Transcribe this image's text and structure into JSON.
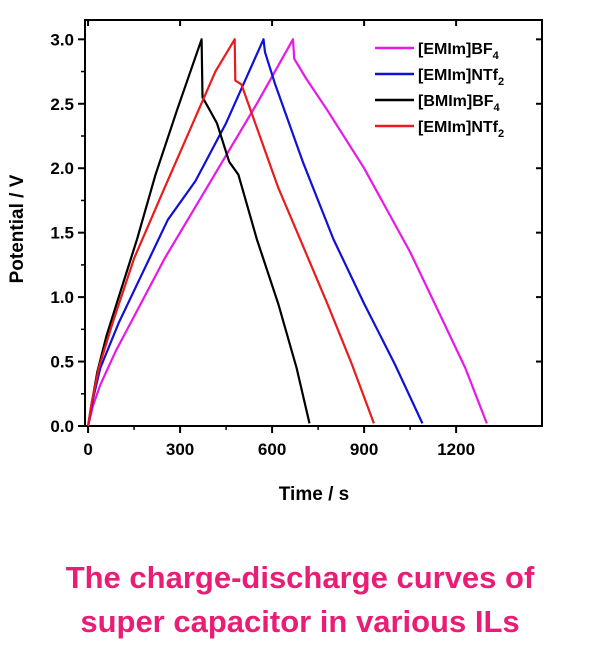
{
  "chart_data": {
    "type": "line",
    "title": "",
    "xlabel": "Time / s",
    "ylabel": "Potential / V",
    "xlim": [
      -10,
      1480
    ],
    "ylim": [
      0,
      3.15
    ],
    "xticks": [
      0,
      300,
      600,
      900,
      1200
    ],
    "yticks": [
      0.0,
      0.5,
      1.0,
      1.5,
      2.0,
      2.5,
      3.0
    ],
    "xtick_labels": [
      "0",
      "300",
      "600",
      "900",
      "1200"
    ],
    "ytick_labels": [
      "0.0",
      "0.5",
      "1.0",
      "1.5",
      "2.0",
      "2.5",
      "3.0"
    ],
    "grid": false,
    "legend_position": "top-right",
    "series": [
      {
        "name": "[EMIm]BF4",
        "label_main": "[EMIm]BF",
        "label_sub": "4",
        "color": "#e619e6",
        "points": [
          [
            0,
            0
          ],
          [
            15,
            0.15
          ],
          [
            40,
            0.32
          ],
          [
            90,
            0.58
          ],
          [
            150,
            0.85
          ],
          [
            250,
            1.3
          ],
          [
            400,
            1.9
          ],
          [
            550,
            2.5
          ],
          [
            668,
            3.0
          ],
          [
            672,
            2.85
          ],
          [
            710,
            2.7
          ],
          [
            780,
            2.45
          ],
          [
            900,
            2.0
          ],
          [
            1050,
            1.35
          ],
          [
            1150,
            0.85
          ],
          [
            1230,
            0.45
          ],
          [
            1300,
            0.02
          ]
        ]
      },
      {
        "name": "[EMIm]NTf2",
        "label_main": "[EMIm]NTf",
        "label_sub": "2",
        "color": "#1010d8",
        "points": [
          [
            0,
            0
          ],
          [
            15,
            0.2
          ],
          [
            40,
            0.45
          ],
          [
            100,
            0.8
          ],
          [
            180,
            1.2
          ],
          [
            260,
            1.6
          ],
          [
            350,
            1.9
          ],
          [
            450,
            2.35
          ],
          [
            572,
            3.0
          ],
          [
            577,
            2.9
          ],
          [
            610,
            2.65
          ],
          [
            700,
            2.05
          ],
          [
            800,
            1.45
          ],
          [
            900,
            0.95
          ],
          [
            1000,
            0.48
          ],
          [
            1090,
            0.02
          ]
        ]
      },
      {
        "name": "[BMIm]BF4",
        "label_main": "[BMIm]BF",
        "label_sub": "4",
        "color": "#000000",
        "points": [
          [
            0,
            0
          ],
          [
            10,
            0.15
          ],
          [
            30,
            0.42
          ],
          [
            60,
            0.7
          ],
          [
            100,
            1.0
          ],
          [
            160,
            1.45
          ],
          [
            220,
            1.95
          ],
          [
            290,
            2.45
          ],
          [
            370,
            3.0
          ],
          [
            373,
            2.55
          ],
          [
            390,
            2.48
          ],
          [
            420,
            2.35
          ],
          [
            460,
            2.05
          ],
          [
            490,
            1.95
          ],
          [
            550,
            1.45
          ],
          [
            620,
            0.95
          ],
          [
            680,
            0.45
          ],
          [
            722,
            0.02
          ]
        ]
      },
      {
        "name": "[EMIm]NTf2",
        "label_main": "[EMIm]NTf",
        "label_sub": "2",
        "color": "#e81c1c",
        "points": [
          [
            0,
            0
          ],
          [
            12,
            0.18
          ],
          [
            35,
            0.45
          ],
          [
            80,
            0.8
          ],
          [
            150,
            1.3
          ],
          [
            250,
            1.85
          ],
          [
            360,
            2.45
          ],
          [
            415,
            2.75
          ],
          [
            478,
            3.0
          ],
          [
            480,
            2.68
          ],
          [
            500,
            2.65
          ],
          [
            560,
            2.25
          ],
          [
            620,
            1.85
          ],
          [
            700,
            1.4
          ],
          [
            780,
            0.95
          ],
          [
            860,
            0.48
          ],
          [
            932,
            0.02
          ]
        ]
      }
    ]
  },
  "caption": {
    "line1": "The charge-discharge curves of",
    "line2": "super capacitor in various ILs"
  }
}
